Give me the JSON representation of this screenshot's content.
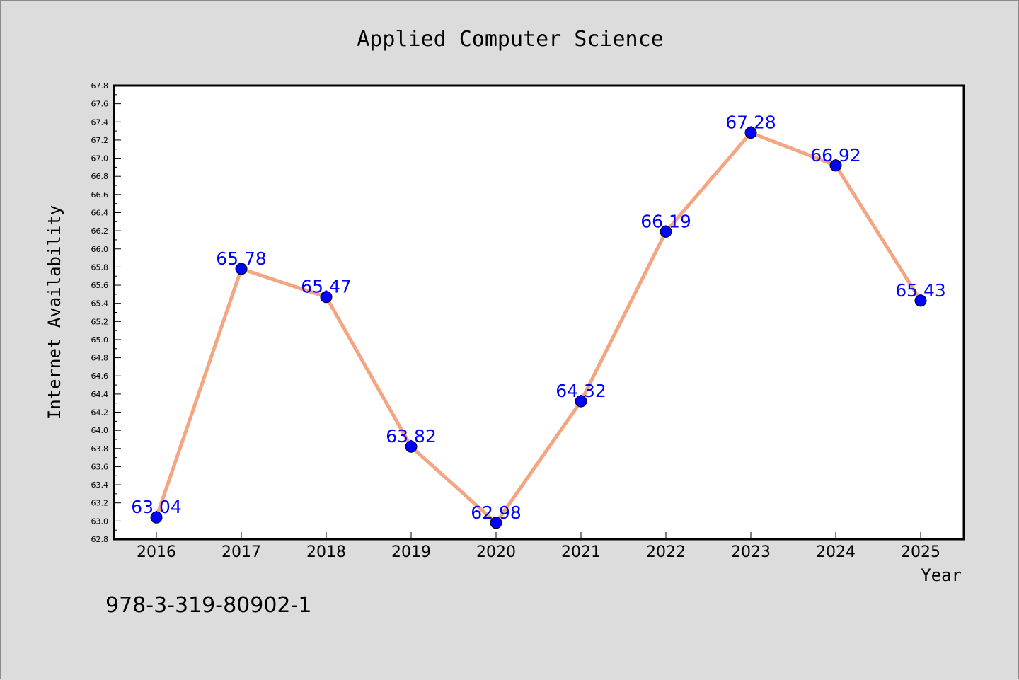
{
  "chart_data": {
    "type": "line",
    "title": "Applied Computer Science",
    "xlabel": "Year",
    "ylabel": "Internet Availability",
    "categories": [
      "2016",
      "2017",
      "2018",
      "2019",
      "2020",
      "2021",
      "2022",
      "2023",
      "2024",
      "2025"
    ],
    "series": [
      {
        "values": [
          63.04,
          65.78,
          65.47,
          63.82,
          62.98,
          64.32,
          66.19,
          67.28,
          66.92,
          65.43
        ],
        "labels": [
          "63.04",
          "65.78",
          "65.47",
          "63.82",
          "62.98",
          "64.32",
          "66.19",
          "67.28",
          "66.92",
          "65.43"
        ],
        "line_color": "#f4a582",
        "marker_color": "#0000ff"
      }
    ],
    "ylim": [
      62.8,
      67.8
    ],
    "yticks": [
      "62.8",
      "63.0",
      "63.2",
      "63.4",
      "63.6",
      "63.8",
      "64.0",
      "64.2",
      "64.4",
      "64.6",
      "64.8",
      "65.0",
      "65.2",
      "65.4",
      "65.6",
      "65.8",
      "66.0",
      "66.2",
      "66.4",
      "66.6",
      "66.8",
      "67.0",
      "67.2",
      "67.4",
      "67.6",
      "67.8"
    ],
    "grid": false,
    "legend": "none",
    "label_color": "#0000ff",
    "plot_background": "#ffffff",
    "page_background": "#dcdcdc"
  },
  "footer": {
    "isbn": "978-3-319-80902-1"
  }
}
